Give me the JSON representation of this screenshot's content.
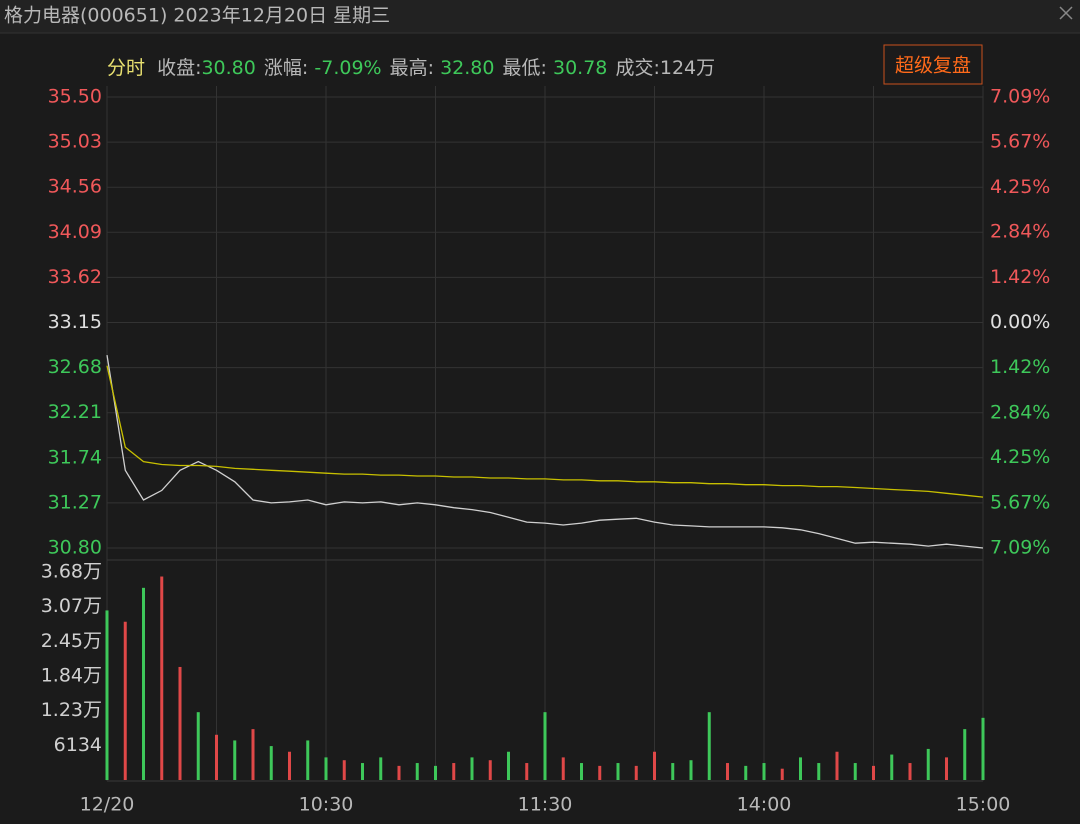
{
  "header": {
    "title": "格力电器(000651) 2023年12月20日 星期三",
    "mode": "分时",
    "info": [
      {
        "label": "收盘:",
        "value": "30.80"
      },
      {
        "label": "涨幅: ",
        "value": "-7.09%"
      },
      {
        "label": "最高: ",
        "value": "32.80"
      },
      {
        "label": "最低: ",
        "value": "30.78"
      }
    ],
    "turnover": "成交:124万",
    "button": "超级复盘"
  },
  "chart_data": [
    {
      "type": "line",
      "x": [
        0,
        5,
        10,
        15,
        20,
        25,
        30,
        35,
        40,
        45,
        50,
        55,
        60,
        65,
        70,
        75,
        80,
        85,
        90,
        95,
        100,
        105,
        110,
        115,
        120,
        125,
        130,
        135,
        140,
        145,
        150,
        155,
        160,
        165,
        170,
        175,
        180,
        185,
        190,
        195,
        200,
        205,
        210,
        215,
        220,
        225,
        230,
        235,
        240
      ],
      "series": [
        {
          "name": "价格",
          "color": "#d0d0d0",
          "values": [
            32.81,
            31.61,
            31.3,
            31.4,
            31.61,
            31.7,
            31.61,
            31.49,
            31.3,
            31.27,
            31.28,
            31.3,
            31.25,
            31.28,
            31.27,
            31.28,
            31.25,
            31.27,
            31.25,
            31.22,
            31.2,
            31.17,
            31.12,
            31.07,
            31.06,
            31.04,
            31.06,
            31.09,
            31.1,
            31.11,
            31.07,
            31.04,
            31.03,
            31.02,
            31.02,
            31.02,
            31.02,
            31.01,
            30.99,
            30.95,
            30.9,
            30.85,
            30.86,
            30.85,
            30.84,
            30.82,
            30.84,
            30.82,
            30.8
          ]
        },
        {
          "name": "均价",
          "color": "#c8c000",
          "values": [
            32.7,
            31.85,
            31.7,
            31.67,
            31.66,
            31.66,
            31.65,
            31.63,
            31.62,
            31.61,
            31.6,
            31.59,
            31.58,
            31.57,
            31.57,
            31.56,
            31.56,
            31.55,
            31.55,
            31.54,
            31.54,
            31.53,
            31.53,
            31.52,
            31.52,
            31.51,
            31.51,
            31.5,
            31.5,
            31.49,
            31.49,
            31.48,
            31.48,
            31.47,
            31.47,
            31.46,
            31.46,
            31.45,
            31.45,
            31.44,
            31.44,
            31.43,
            31.42,
            31.41,
            31.4,
            31.39,
            31.37,
            31.35,
            31.33
          ]
        }
      ],
      "xlim": [
        0,
        240
      ],
      "xticks": [
        {
          "value": 0,
          "label": "12/20"
        },
        {
          "value": 60,
          "label": "10:30"
        },
        {
          "value": 120,
          "label": "11:30"
        },
        {
          "value": 180,
          "label": "14:00"
        },
        {
          "value": 240,
          "label": "15:00"
        }
      ],
      "ylim": [
        30.8,
        35.5
      ],
      "yticks": [
        {
          "value": 35.5,
          "label": "35.50"
        },
        35.03,
        34.56,
        34.09,
        33.62,
        33.15,
        32.68,
        32.21,
        31.74,
        31.27,
        {
          "value": 30.8,
          "label": "30.80"
        }
      ],
      "y2lim": [
        -7.09,
        7.09
      ],
      "y2ticks": [
        {
          "value": 7.09,
          "label": "7.09%"
        },
        {
          "value": 5.67,
          "label": "5.67%"
        },
        {
          "value": 4.25,
          "label": "4.25%"
        },
        {
          "value": 2.84,
          "label": "2.84%"
        },
        {
          "value": 1.42,
          "label": "1.42%"
        },
        {
          "value": 0,
          "label": "0.00%"
        },
        {
          "value": -1.42,
          "label": "1.42%"
        },
        {
          "value": -2.84,
          "label": "2.84%"
        },
        {
          "value": -4.25,
          "label": "4.25%"
        },
        {
          "value": -5.67,
          "label": "5.67%"
        },
        {
          "value": -7.09,
          "label": "7.09%"
        }
      ],
      "up_color": "#f0585a",
      "down_color": "#3ec85a",
      "flat_color": "#e0e0e0",
      "grid": true
    },
    {
      "type": "bar",
      "x": [
        0,
        5,
        10,
        15,
        20,
        25,
        30,
        35,
        40,
        45,
        50,
        55,
        60,
        65,
        70,
        75,
        80,
        85,
        90,
        95,
        100,
        105,
        110,
        115,
        120,
        125,
        130,
        135,
        140,
        145,
        150,
        155,
        160,
        165,
        170,
        175,
        180,
        185,
        190,
        195,
        200,
        205,
        210,
        215,
        220,
        225,
        230,
        235,
        240
      ],
      "xlim": [
        0,
        240
      ],
      "values": [
        30000,
        28000,
        34000,
        36000,
        20000,
        12000,
        8000,
        7000,
        9000,
        6000,
        5000,
        7000,
        4000,
        3500,
        3000,
        4000,
        2500,
        3000,
        2500,
        3000,
        4000,
        3500,
        5000,
        3000,
        12000,
        4000,
        3000,
        2500,
        3000,
        2500,
        5000,
        3000,
        3500,
        12000,
        3000,
        2500,
        3000,
        2000,
        4000,
        3000,
        5000,
        3000,
        2500,
        4500,
        3000,
        5500,
        4000,
        9000,
        11000
      ],
      "colors": [
        "#3ec85a",
        "#e04848",
        "#3ec85a",
        "#e04848",
        "#e04848",
        "#3ec85a",
        "#e04848",
        "#3ec85a",
        "#e04848",
        "#3ec85a",
        "#e04848",
        "#3ec85a",
        "#3ec85a",
        "#e04848",
        "#3ec85a",
        "#3ec85a",
        "#e04848",
        "#3ec85a",
        "#3ec85a",
        "#e04848",
        "#3ec85a",
        "#e04848",
        "#3ec85a",
        "#e04848",
        "#3ec85a",
        "#e04848",
        "#3ec85a",
        "#e04848",
        "#3ec85a",
        "#e04848",
        "#e04848",
        "#3ec85a",
        "#3ec85a",
        "#3ec85a",
        "#e04848",
        "#3ec85a",
        "#3ec85a",
        "#e04848",
        "#3ec85a",
        "#3ec85a",
        "#e04848",
        "#3ec85a",
        "#e04848",
        "#3ec85a",
        "#e04848",
        "#3ec85a",
        "#e04848",
        "#3ec85a",
        "#3ec85a"
      ],
      "ylim": [
        0,
        36800
      ],
      "yticks": [
        6134,
        {
          "value": 12300,
          "label": "1.23万"
        },
        {
          "value": 18400,
          "label": "1.84万"
        },
        {
          "value": 24500,
          "label": "2.45万"
        },
        {
          "value": 30700,
          "label": "3.07万"
        },
        {
          "value": 36800,
          "label": "3.68万"
        }
      ]
    }
  ]
}
